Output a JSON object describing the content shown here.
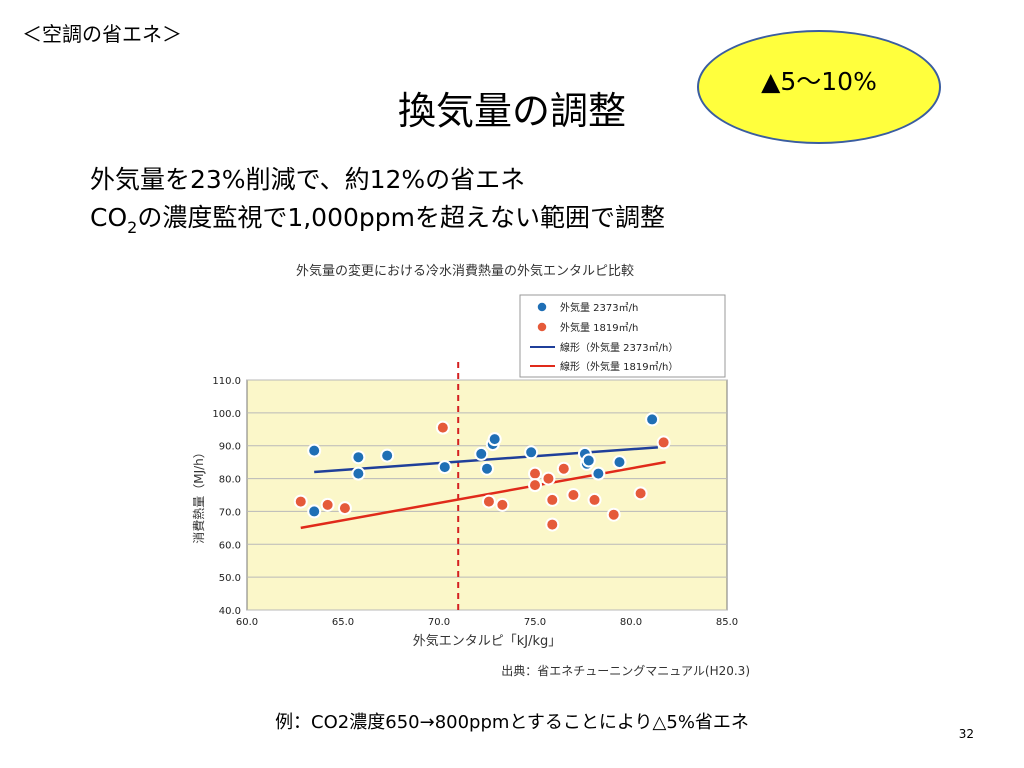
{
  "slide": {
    "section": "＜空調の省エネ＞",
    "title": "換気量の調整",
    "badge": "▲5～10%",
    "bullet1": "外気量を23%削減で、約12%の省エネ",
    "bullet2_pre": "CO",
    "bullet2_sub": "2",
    "bullet2_post": "の濃度監視で1,000ppmを超えない範囲で調整",
    "footnote": "例：CO2濃度650→800ppmとすることにより△5%省エネ",
    "page_number": "32",
    "colors": {
      "badge_fill": "#ffff3d",
      "badge_border": "#3a5da0"
    }
  },
  "chart_data": {
    "type": "scatter",
    "title": "外気量の変更における冷水消費熱量の外気エンタルピ比較",
    "xlabel": "外気エンタルピ「kJ/kg」",
    "ylabel": "消費熱量（MJ/h）",
    "source": "出典：省エネチューニングマニュアル(H20.3)",
    "xlim": [
      60.0,
      85.0
    ],
    "ylim": [
      40.0,
      110.0
    ],
    "x_ticks": [
      "60.0",
      "65.0",
      "70.0",
      "75.0",
      "80.0",
      "85.0"
    ],
    "y_ticks": [
      "40.0",
      "50.0",
      "60.0",
      "70.0",
      "80.0",
      "90.0",
      "100.0",
      "110.0"
    ],
    "reference_line_x": 71.0,
    "grid": true,
    "legend_position": "top-right",
    "series": [
      {
        "name": "外気量 2373㎥/h",
        "color": "#1f6fb5",
        "points": [
          [
            63.5,
            88.5
          ],
          [
            63.5,
            70.0
          ],
          [
            65.8,
            86.5
          ],
          [
            65.8,
            81.5
          ],
          [
            67.3,
            87.0
          ],
          [
            70.3,
            83.5
          ],
          [
            72.2,
            87.5
          ],
          [
            72.5,
            83.0
          ],
          [
            72.8,
            90.5
          ],
          [
            72.9,
            92.0
          ],
          [
            74.8,
            88.0
          ],
          [
            77.6,
            87.5
          ],
          [
            77.7,
            84.5
          ],
          [
            77.8,
            85.5
          ],
          [
            78.3,
            81.5
          ],
          [
            79.4,
            85.0
          ],
          [
            81.1,
            98.0
          ]
        ]
      },
      {
        "name": "外気量 1819㎥/h",
        "color": "#e55a3a",
        "points": [
          [
            62.8,
            73.0
          ],
          [
            64.2,
            72.0
          ],
          [
            65.1,
            71.0
          ],
          [
            70.2,
            95.5
          ],
          [
            72.6,
            73.0
          ],
          [
            73.3,
            72.0
          ],
          [
            75.0,
            81.5
          ],
          [
            75.0,
            78.0
          ],
          [
            75.7,
            80.0
          ],
          [
            75.9,
            73.5
          ],
          [
            75.9,
            66.0
          ],
          [
            76.5,
            83.0
          ],
          [
            77.0,
            75.0
          ],
          [
            78.1,
            73.5
          ],
          [
            79.1,
            69.0
          ],
          [
            80.5,
            75.5
          ],
          [
            81.7,
            91.0
          ]
        ]
      }
    ],
    "trendlines": [
      {
        "name": "線形（外気量 2373㎥/h）",
        "color": "#1f3f9a",
        "from": [
          63.5,
          82.0
        ],
        "to": [
          81.4,
          89.5
        ]
      },
      {
        "name": "線形（外気量 1819㎥/h）",
        "color": "#e02a1a",
        "from": [
          62.8,
          65.0
        ],
        "to": [
          81.8,
          85.0
        ]
      }
    ]
  }
}
